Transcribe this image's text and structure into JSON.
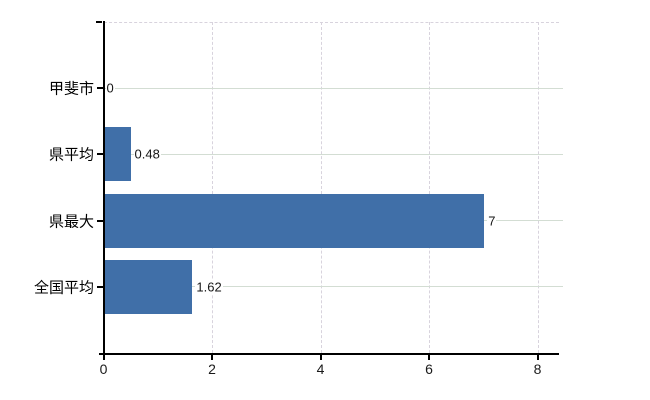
{
  "chart_data": {
    "type": "bar",
    "orientation": "horizontal",
    "categories": [
      "甲斐市",
      "県平均",
      "県最大",
      "全国平均"
    ],
    "values": [
      0,
      0.48,
      7,
      1.62
    ],
    "value_labels": [
      "0",
      "0.48",
      "7",
      "1.62"
    ],
    "x_ticks": [
      0,
      2,
      4,
      6,
      8
    ],
    "x_tick_labels": [
      "0",
      "2",
      "4",
      "6",
      "8"
    ],
    "xlim": [
      0,
      8.4
    ],
    "grid": "on",
    "legend": "none",
    "colors": {
      "bar": "#406fa8",
      "axis": "#000000",
      "horizontal_grid": "#d3ddd3",
      "vertical_grid": "#d8d3dd",
      "text": "#1a1a1a"
    }
  }
}
